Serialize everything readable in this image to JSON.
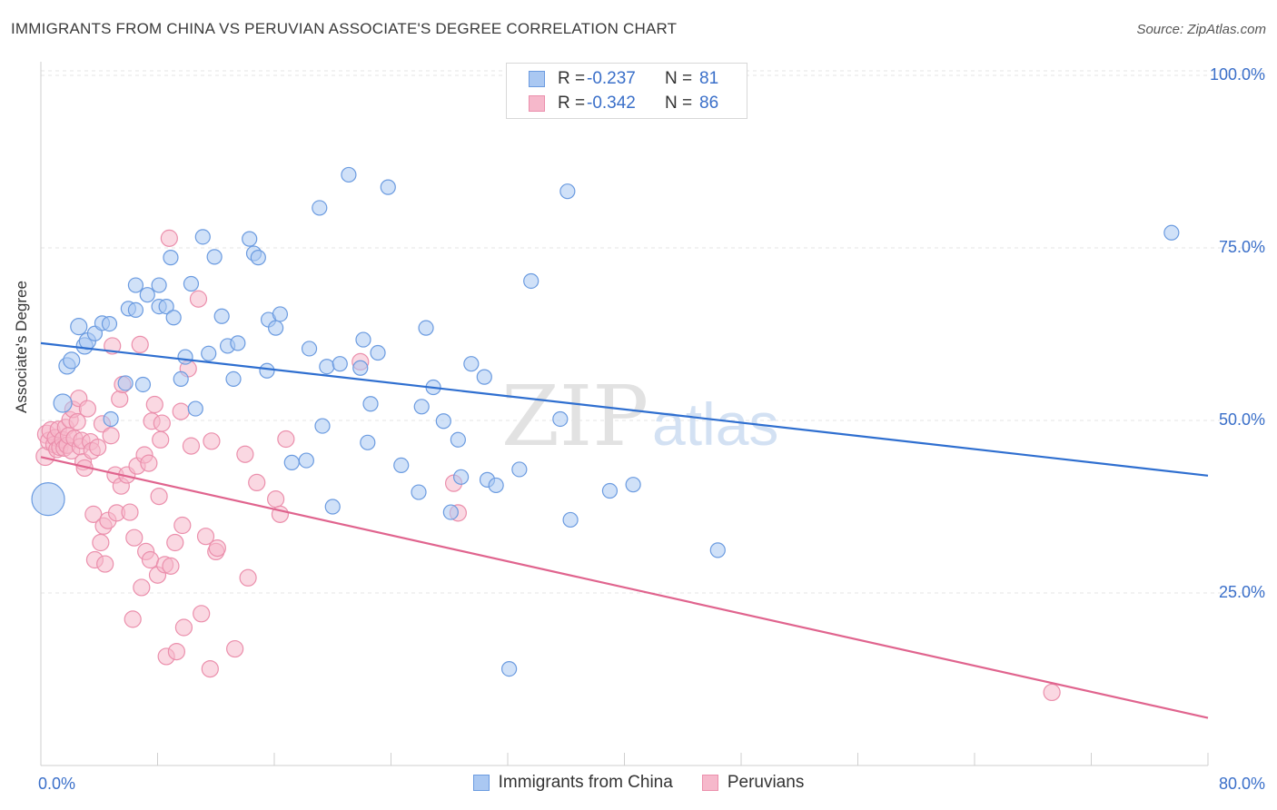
{
  "header": {
    "title": "IMMIGRANTS FROM CHINA VS PERUVIAN ASSOCIATE'S DEGREE CORRELATION CHART",
    "source": "Source: ZipAtlas.com"
  },
  "legend": {
    "rows": [
      {
        "r_label": "R =",
        "r_value": "-0.237",
        "n_label": "N =",
        "n_value": "81"
      },
      {
        "r_label": "R =",
        "r_value": "-0.342",
        "n_label": "N =",
        "n_value": "86"
      }
    ]
  },
  "bottom_legend": {
    "china": "Immigrants from China",
    "peru": "Peruvians"
  },
  "watermark": {
    "zip": "ZIP",
    "atlas": "atlas"
  },
  "colors": {
    "china_fill": "#aac8f2",
    "china_stroke": "#6b9be0",
    "china_line": "#2f6fd0",
    "peru_fill": "#f6b8cb",
    "peru_stroke": "#eb8fac",
    "peru_line": "#e0648e",
    "axis_text": "#3a6fc9"
  },
  "chart_data": {
    "type": "scatter",
    "xlabel": "",
    "ylabel": "Associate's Degree",
    "xlim": [
      0,
      80
    ],
    "ylim": [
      0,
      105
    ],
    "x_tick_labels": [
      "0.0%",
      "80.0%"
    ],
    "y_tick_labels": [
      "100.0%",
      "75.0%",
      "50.0%",
      "25.0%"
    ],
    "y_ticks": [
      100,
      75,
      50,
      25
    ],
    "grid": true,
    "legend_position": "top-center",
    "series": [
      {
        "name": "Immigrants from China",
        "trend": {
          "x": [
            0,
            80
          ],
          "y": [
            61.2,
            42.0
          ]
        },
        "points": [
          [
            0.5,
            38.6,
            18
          ],
          [
            1.5,
            52.5,
            10
          ],
          [
            1.8,
            57.9,
            9
          ],
          [
            2.1,
            58.7,
            9
          ],
          [
            2.6,
            63.6,
            9
          ],
          [
            3.0,
            60.8,
            9
          ],
          [
            3.2,
            61.5,
            9
          ],
          [
            3.7,
            62.6,
            8
          ],
          [
            4.2,
            64.1,
            8
          ],
          [
            4.7,
            64.0,
            8
          ],
          [
            4.8,
            50.2,
            8
          ],
          [
            5.8,
            55.4,
            8
          ],
          [
            6.0,
            66.2,
            8
          ],
          [
            6.5,
            66.0,
            8
          ],
          [
            6.5,
            69.6,
            8
          ],
          [
            7.0,
            55.2,
            8
          ],
          [
            7.3,
            68.2,
            8
          ],
          [
            8.1,
            66.5,
            8
          ],
          [
            8.1,
            69.6,
            8
          ],
          [
            8.6,
            66.5,
            8
          ],
          [
            8.9,
            73.6,
            8
          ],
          [
            9.1,
            64.9,
            8
          ],
          [
            9.6,
            56.0,
            8
          ],
          [
            9.9,
            59.2,
            8
          ],
          [
            10.3,
            69.8,
            8
          ],
          [
            10.6,
            51.7,
            8
          ],
          [
            11.1,
            76.6,
            8
          ],
          [
            11.5,
            59.7,
            8
          ],
          [
            11.9,
            73.7,
            8
          ],
          [
            12.4,
            65.1,
            8
          ],
          [
            12.8,
            60.8,
            8
          ],
          [
            13.2,
            56.0,
            8
          ],
          [
            13.5,
            61.2,
            8
          ],
          [
            14.3,
            76.3,
            8
          ],
          [
            14.6,
            74.2,
            8
          ],
          [
            14.9,
            73.6,
            8
          ],
          [
            15.5,
            57.2,
            8
          ],
          [
            15.6,
            64.6,
            8
          ],
          [
            16.1,
            63.4,
            8
          ],
          [
            16.4,
            65.4,
            8
          ],
          [
            17.2,
            43.9,
            8
          ],
          [
            18.2,
            44.2,
            8
          ],
          [
            18.4,
            60.4,
            8
          ],
          [
            19.1,
            80.8,
            8
          ],
          [
            19.3,
            49.2,
            8
          ],
          [
            19.6,
            57.8,
            8
          ],
          [
            20.0,
            37.5,
            8
          ],
          [
            20.5,
            58.2,
            8
          ],
          [
            21.1,
            85.6,
            8
          ],
          [
            21.9,
            57.6,
            8
          ],
          [
            22.1,
            61.7,
            8
          ],
          [
            22.4,
            46.8,
            8
          ],
          [
            22.6,
            52.4,
            8
          ],
          [
            23.1,
            59.8,
            8
          ],
          [
            23.8,
            83.8,
            8
          ],
          [
            24.7,
            43.5,
            8
          ],
          [
            25.9,
            39.6,
            8
          ],
          [
            26.1,
            52.0,
            8
          ],
          [
            26.4,
            63.4,
            8
          ],
          [
            26.9,
            54.8,
            8
          ],
          [
            27.6,
            49.9,
            8
          ],
          [
            28.1,
            36.7,
            8
          ],
          [
            28.6,
            47.2,
            8
          ],
          [
            28.8,
            41.8,
            8
          ],
          [
            29.5,
            58.2,
            8
          ],
          [
            30.4,
            56.3,
            8
          ],
          [
            30.6,
            41.4,
            8
          ],
          [
            31.2,
            40.6,
            8
          ],
          [
            32.1,
            14.0,
            8
          ],
          [
            32.8,
            42.9,
            8
          ],
          [
            33.6,
            70.2,
            8
          ],
          [
            35.6,
            50.2,
            8
          ],
          [
            36.1,
            83.2,
            8
          ],
          [
            36.3,
            35.6,
            8
          ],
          [
            39.0,
            39.8,
            8
          ],
          [
            40.6,
            40.7,
            8
          ],
          [
            46.4,
            31.2,
            8
          ],
          [
            77.5,
            77.2,
            8
          ]
        ]
      },
      {
        "name": "Peruvians",
        "trend": {
          "x": [
            0,
            80
          ],
          "y": [
            44.7,
            6.9
          ]
        },
        "points": [
          [
            0.3,
            44.8,
            10
          ],
          [
            0.4,
            48.0,
            10
          ],
          [
            0.6,
            47.0,
            10
          ],
          [
            0.7,
            48.5,
            10
          ],
          [
            0.9,
            46.5,
            9
          ],
          [
            1.0,
            47.5,
            9
          ],
          [
            1.1,
            45.8,
            9
          ],
          [
            1.2,
            48.7,
            9
          ],
          [
            1.3,
            46.1,
            9
          ],
          [
            1.5,
            47.2,
            9
          ],
          [
            1.6,
            46.0,
            9
          ],
          [
            1.7,
            49.0,
            9
          ],
          [
            1.8,
            46.4,
            9
          ],
          [
            1.9,
            47.8,
            9
          ],
          [
            2.0,
            50.1,
            9
          ],
          [
            2.1,
            45.6,
            9
          ],
          [
            2.2,
            51.6,
            9
          ],
          [
            2.3,
            47.4,
            9
          ],
          [
            2.5,
            49.8,
            9
          ],
          [
            2.6,
            53.2,
            9
          ],
          [
            2.7,
            46.2,
            9
          ],
          [
            2.8,
            47.1,
            9
          ],
          [
            2.9,
            44.0,
            9
          ],
          [
            3.0,
            43.1,
            9
          ],
          [
            3.2,
            51.7,
            9
          ],
          [
            3.4,
            46.9,
            9
          ],
          [
            3.5,
            45.6,
            9
          ],
          [
            3.6,
            36.4,
            9
          ],
          [
            3.7,
            29.8,
            9
          ],
          [
            3.9,
            46.1,
            9
          ],
          [
            4.1,
            32.3,
            9
          ],
          [
            4.2,
            49.5,
            9
          ],
          [
            4.3,
            34.7,
            9
          ],
          [
            4.4,
            29.2,
            9
          ],
          [
            4.6,
            35.5,
            9
          ],
          [
            4.8,
            47.8,
            9
          ],
          [
            4.9,
            60.8,
            9
          ],
          [
            5.1,
            42.1,
            9
          ],
          [
            5.2,
            36.6,
            9
          ],
          [
            5.4,
            53.1,
            9
          ],
          [
            5.5,
            40.5,
            9
          ],
          [
            5.6,
            55.2,
            9
          ],
          [
            5.9,
            42.1,
            9
          ],
          [
            6.1,
            36.7,
            9
          ],
          [
            6.3,
            21.2,
            9
          ],
          [
            6.4,
            33.0,
            9
          ],
          [
            6.6,
            43.4,
            9
          ],
          [
            6.8,
            61.0,
            9
          ],
          [
            6.9,
            25.8,
            9
          ],
          [
            7.1,
            45.0,
            9
          ],
          [
            7.2,
            31.0,
            9
          ],
          [
            7.4,
            43.8,
            9
          ],
          [
            7.5,
            29.8,
            9
          ],
          [
            7.6,
            49.9,
            9
          ],
          [
            7.8,
            52.3,
            9
          ],
          [
            8.0,
            27.6,
            9
          ],
          [
            8.1,
            39.0,
            9
          ],
          [
            8.2,
            47.2,
            9
          ],
          [
            8.3,
            49.6,
            9
          ],
          [
            8.5,
            29.1,
            9
          ],
          [
            8.6,
            15.8,
            9
          ],
          [
            8.8,
            76.4,
            9
          ],
          [
            8.9,
            28.9,
            9
          ],
          [
            9.2,
            32.3,
            9
          ],
          [
            9.3,
            16.5,
            9
          ],
          [
            9.6,
            51.3,
            9
          ],
          [
            9.7,
            34.8,
            9
          ],
          [
            9.8,
            20.0,
            9
          ],
          [
            10.1,
            57.5,
            9
          ],
          [
            10.3,
            46.3,
            9
          ],
          [
            10.8,
            67.6,
            9
          ],
          [
            11.0,
            22.0,
            9
          ],
          [
            11.3,
            33.2,
            9
          ],
          [
            11.6,
            14.0,
            9
          ],
          [
            11.7,
            47.0,
            9
          ],
          [
            12.0,
            31.0,
            9
          ],
          [
            12.1,
            31.5,
            9
          ],
          [
            13.3,
            16.9,
            9
          ],
          [
            14.0,
            45.1,
            9
          ],
          [
            14.2,
            27.2,
            9
          ],
          [
            14.8,
            41.0,
            9
          ],
          [
            16.1,
            38.6,
            9
          ],
          [
            16.4,
            36.4,
            9
          ],
          [
            16.8,
            47.3,
            9
          ],
          [
            21.9,
            58.5,
            9
          ],
          [
            28.3,
            40.9,
            9
          ],
          [
            28.6,
            36.6,
            9
          ],
          [
            69.3,
            10.6,
            9
          ]
        ]
      }
    ]
  }
}
